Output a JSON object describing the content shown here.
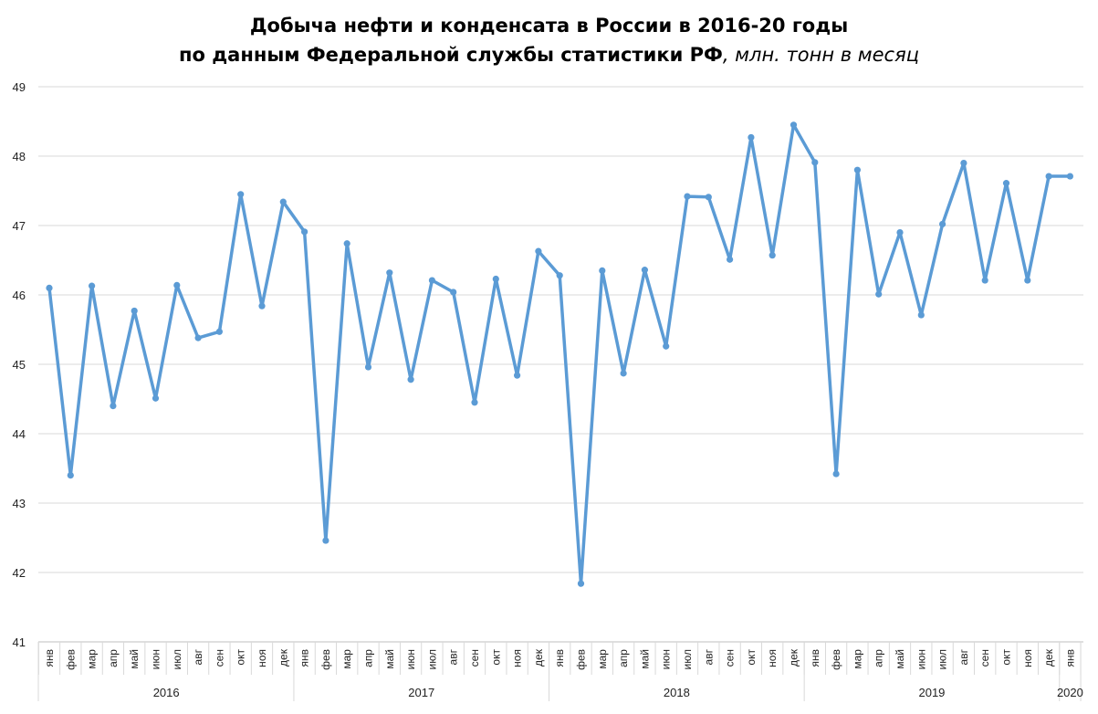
{
  "chart_data": {
    "type": "line",
    "title": "Добыча нефти и конденсата в России в 2016-20 годы",
    "subtitle_main": "по данным Федеральной службы статистики РФ",
    "subtitle_unit": ", млн. тонн в месяц",
    "ylim": [
      41,
      49
    ],
    "y_ticks": [
      "41",
      "42",
      "43",
      "44",
      "45",
      "46",
      "47",
      "48",
      "49"
    ],
    "grid": true,
    "line_color": "#5B9BD5",
    "x_months": [
      "янв",
      "фев",
      "мар",
      "апр",
      "май",
      "июн",
      "июл",
      "авг",
      "сен",
      "окт",
      "ноя",
      "дек",
      "янв",
      "фев",
      "мар",
      "апр",
      "май",
      "июн",
      "июл",
      "авг",
      "сен",
      "окт",
      "ноя",
      "дек",
      "янв",
      "фев",
      "мар",
      "апр",
      "май",
      "июн",
      "июл",
      "авг",
      "сен",
      "окт",
      "ноя",
      "дек",
      "янв",
      "фев",
      "мар",
      "апр",
      "май",
      "июн",
      "июл",
      "авг",
      "сен",
      "окт",
      "ноя",
      "дек",
      "янв"
    ],
    "years": [
      {
        "label": "2016",
        "count": 12
      },
      {
        "label": "2017",
        "count": 12
      },
      {
        "label": "2018",
        "count": 12
      },
      {
        "label": "2019",
        "count": 12
      },
      {
        "label": "2020",
        "count": 1
      }
    ],
    "series": [
      {
        "values": [
          46.1,
          43.4,
          46.13,
          44.4,
          45.77,
          44.51,
          46.14,
          45.38,
          45.47,
          47.45,
          45.84,
          47.34,
          46.91,
          42.46,
          46.74,
          44.96,
          46.32,
          44.78,
          46.21,
          46.04,
          44.45,
          46.23,
          44.84,
          46.63,
          46.28,
          41.84,
          46.35,
          44.87,
          46.36,
          45.26,
          47.42,
          47.41,
          46.51,
          48.27,
          46.57,
          48.45,
          47.91,
          43.42,
          47.8,
          46.01,
          46.9,
          45.71,
          47.02,
          47.9,
          46.21,
          47.61,
          46.21,
          47.71,
          47.71
        ]
      }
    ]
  }
}
